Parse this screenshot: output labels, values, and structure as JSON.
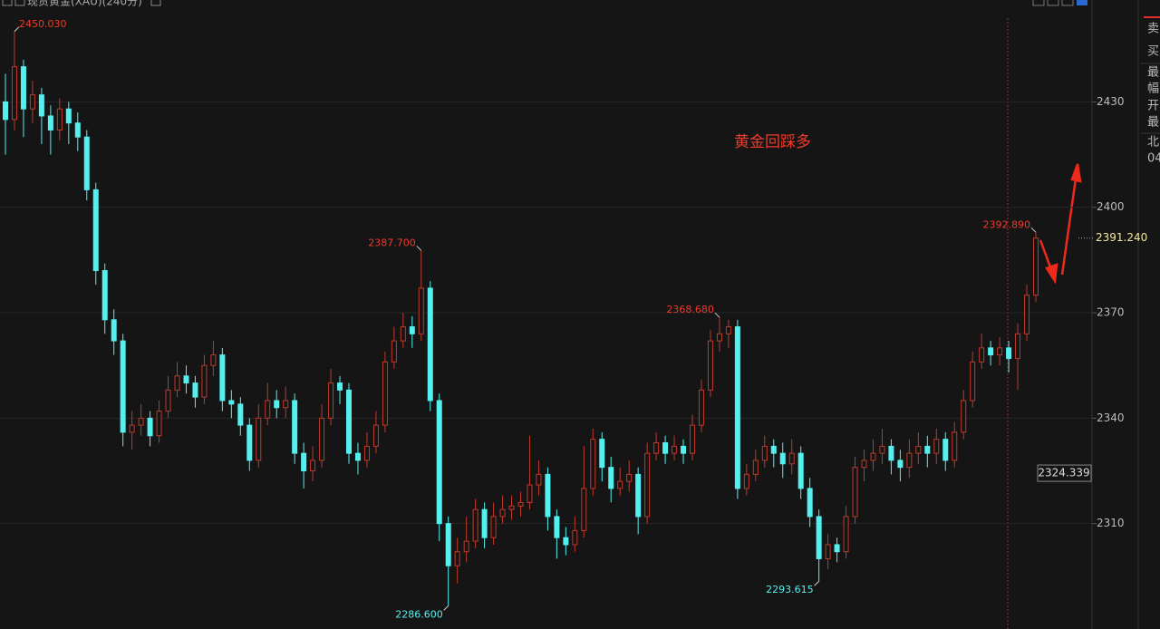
{
  "chart_data": {
    "type": "candlestick",
    "title": "现货黄金(XAU)(240分)",
    "annotation": "黄金回踩多",
    "up_color": "#c0392b",
    "down_color": "#54f0f0",
    "open": [
      2430,
      2425,
      2440,
      2428,
      2432,
      2426,
      2422,
      2428,
      2424,
      2420,
      2405,
      2382,
      2368,
      2362,
      2336,
      2338,
      2340,
      2335,
      2342,
      2348,
      2352,
      2350,
      2346,
      2355,
      2358,
      2345,
      2344,
      2338,
      2328,
      2340,
      2345,
      2343,
      2345,
      2330,
      2325,
      2328,
      2340,
      2350,
      2348,
      2330,
      2328,
      2332,
      2338,
      2356,
      2362,
      2366,
      2364,
      2377,
      2345,
      2310,
      2298,
      2302,
      2305,
      2314,
      2306,
      2312,
      2314,
      2315,
      2316,
      2321,
      2324,
      2312,
      2306,
      2304,
      2308,
      2320,
      2334,
      2326,
      2320,
      2322,
      2324,
      2312,
      2330,
      2333,
      2330,
      2332,
      2330,
      2338,
      2348,
      2362,
      2364,
      2366,
      2320,
      2324,
      2328,
      2332,
      2330,
      2327,
      2330,
      2320,
      2312,
      2300,
      2304,
      2302,
      2312,
      2326,
      2328,
      2330,
      2332,
      2328,
      2326,
      2330,
      2332,
      2330,
      2334,
      2328,
      2336,
      2345,
      2356,
      2360,
      2358,
      2360,
      2357,
      2364,
      2375
    ],
    "high": [
      2438,
      2450.03,
      2442,
      2436,
      2434,
      2429,
      2431,
      2430,
      2427,
      2422,
      2407,
      2384,
      2371,
      2364,
      2342,
      2344,
      2342,
      2345,
      2352,
      2356,
      2355,
      2352,
      2358,
      2362,
      2360,
      2348,
      2346,
      2340,
      2344,
      2350,
      2348,
      2349,
      2347,
      2333,
      2332,
      2344,
      2354,
      2352,
      2350,
      2333,
      2336,
      2342,
      2359,
      2366,
      2370,
      2369,
      2387.7,
      2379,
      2347,
      2312,
      2306,
      2312,
      2317,
      2316,
      2316,
      2318,
      2318,
      2319,
      2335,
      2328,
      2326,
      2314,
      2309,
      2312,
      2332,
      2337,
      2336,
      2329,
      2326,
      2328,
      2326,
      2333,
      2336,
      2335,
      2335,
      2334,
      2341,
      2351,
      2365,
      2368.68,
      2368,
      2368,
      2327,
      2331,
      2335,
      2334,
      2333,
      2334,
      2332,
      2323,
      2314,
      2307,
      2306,
      2315,
      2329,
      2331,
      2334,
      2337,
      2334,
      2331,
      2334,
      2336,
      2335,
      2337,
      2336,
      2339,
      2348,
      2359,
      2364,
      2362,
      2363,
      2362,
      2367,
      2378,
      2392.89
    ],
    "low": [
      2415,
      2422,
      2420,
      2424,
      2418,
      2415,
      2419,
      2418,
      2416,
      2402,
      2378,
      2364,
      2358,
      2332,
      2331,
      2335,
      2332,
      2333,
      2340,
      2346,
      2347,
      2343,
      2344,
      2352,
      2342,
      2340,
      2335,
      2325,
      2326,
      2338,
      2340,
      2340,
      2327,
      2320,
      2322,
      2326,
      2338,
      2344,
      2327,
      2324,
      2326,
      2330,
      2336,
      2354,
      2360,
      2360,
      2362,
      2342,
      2305,
      2286.6,
      2293,
      2299,
      2303,
      2303,
      2304,
      2310,
      2311,
      2312,
      2314,
      2318,
      2308,
      2300,
      2301,
      2302,
      2306,
      2318,
      2322,
      2316,
      2318,
      2319,
      2307,
      2310,
      2328,
      2327,
      2328,
      2327,
      2328,
      2336,
      2346,
      2359,
      2360,
      2317,
      2318,
      2322,
      2326,
      2326,
      2323,
      2324,
      2317,
      2309,
      2293.615,
      2297,
      2299,
      2300,
      2310,
      2322,
      2325,
      2327,
      2324,
      2322,
      2323,
      2327,
      2326,
      2327,
      2325,
      2326,
      2334,
      2343,
      2354,
      2355,
      2355,
      2353,
      2348,
      2362,
      2373
    ],
    "close": [
      2425,
      2440,
      2428,
      2432,
      2426,
      2422,
      2428,
      2424,
      2420,
      2405,
      2382,
      2368,
      2362,
      2336,
      2338,
      2340,
      2335,
      2342,
      2348,
      2352,
      2350,
      2346,
      2355,
      2358,
      2345,
      2344,
      2338,
      2328,
      2340,
      2345,
      2343,
      2345,
      2330,
      2325,
      2328,
      2340,
      2350,
      2348,
      2330,
      2328,
      2332,
      2338,
      2356,
      2362,
      2366,
      2364,
      2377,
      2345,
      2310,
      2298,
      2302,
      2305,
      2314,
      2306,
      2312,
      2314,
      2315,
      2316,
      2321,
      2324,
      2312,
      2306,
      2304,
      2308,
      2320,
      2334,
      2326,
      2320,
      2322,
      2324,
      2312,
      2330,
      2333,
      2330,
      2332,
      2330,
      2338,
      2348,
      2362,
      2364,
      2366,
      2320,
      2324,
      2328,
      2332,
      2330,
      2327,
      2330,
      2320,
      2312,
      2300,
      2304,
      2302,
      2312,
      2326,
      2328,
      2330,
      2332,
      2328,
      2326,
      2330,
      2332,
      2330,
      2334,
      2328,
      2336,
      2345,
      2356,
      2360,
      2358,
      2360,
      2357,
      2364,
      2375,
      2391.24
    ],
    "price_labels": [
      {
        "value": 2450.03,
        "label": "2450.030"
      },
      {
        "value": 2387.7,
        "label": "2387.700"
      },
      {
        "value": 2286.6,
        "label": "2286.600"
      },
      {
        "value": 2368.68,
        "label": "2368.680"
      },
      {
        "value": 2293.615,
        "label": "2293.615"
      },
      {
        "value": 2392.89,
        "label": "2392.890"
      }
    ],
    "last_price": {
      "value": 2391.24,
      "label": "2391.240"
    },
    "cursor_price": 2324.339,
    "ylim": [
      2280,
      2459
    ],
    "yticks": [
      2310,
      2340,
      2370,
      2400,
      2430
    ],
    "grid": true,
    "side_panel": [
      "卖",
      "买",
      "最",
      "幅",
      "开",
      "最",
      "北",
      "04"
    ]
  }
}
